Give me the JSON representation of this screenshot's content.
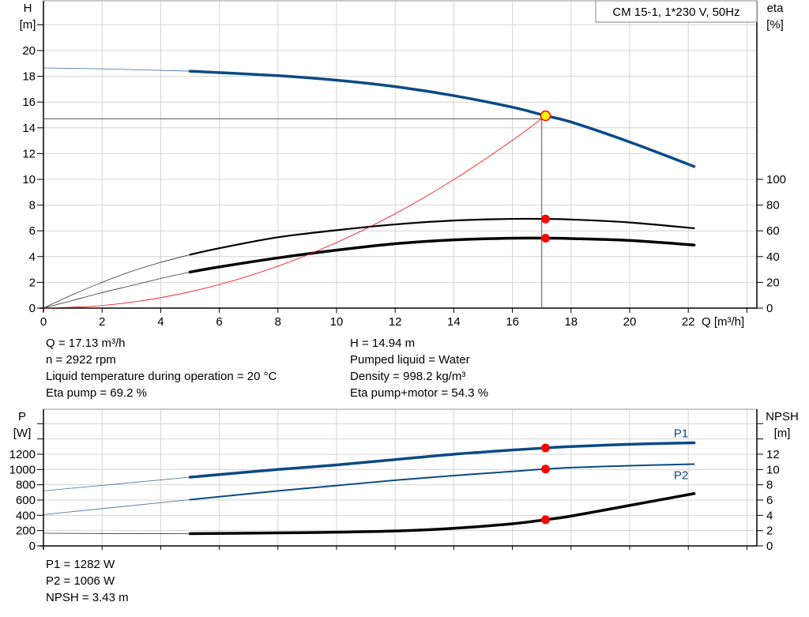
{
  "chart_data": [
    {
      "type": "line",
      "title": "CM 15-1, 1*230 V, 50Hz",
      "xlabel": "Q [m³/h]",
      "ylabel_left": [
        "H",
        "[m]"
      ],
      "ylabel_right": [
        "eta",
        "[%]"
      ],
      "xlim": [
        0,
        24
      ],
      "ylim_left": [
        0,
        24
      ],
      "ylim_right": [
        0,
        100
      ],
      "x_ticks": [
        0,
        2,
        4,
        6,
        8,
        10,
        12,
        14,
        16,
        18,
        20,
        22
      ],
      "y_ticks_left": [
        0,
        2,
        4,
        6,
        8,
        10,
        12,
        14,
        16,
        18,
        20
      ],
      "y_ticks_right": [
        0,
        20,
        40,
        60,
        80,
        100
      ],
      "grid": true,
      "colors": {
        "head": "#0b4a85",
        "eta": "#000000",
        "system": "#ff0000",
        "duty_point": "#ffff00",
        "marker": "#ff0000"
      },
      "series": [
        {
          "key": "H",
          "axis": "left",
          "thin_until": 5,
          "x": [
            0,
            2,
            5,
            8,
            10,
            12,
            14,
            16,
            17.13,
            18,
            20,
            22.2
          ],
          "y": [
            18.65,
            18.58,
            18.4,
            18.05,
            17.7,
            17.2,
            16.5,
            15.6,
            14.94,
            14.45,
            12.9,
            11.0
          ]
        },
        {
          "key": "eta_pump",
          "axis": "right",
          "thin_until": 5,
          "x": [
            0,
            1,
            2,
            3,
            4,
            5,
            6,
            8,
            10,
            12,
            14,
            16,
            17.13,
            18,
            20,
            22.2
          ],
          "y": [
            0,
            10.5,
            20,
            28.5,
            35.5,
            41.5,
            46.5,
            55,
            60.5,
            65,
            68,
            69.3,
            69.2,
            68.8,
            66.5,
            62
          ]
        },
        {
          "key": "eta_pump_motor",
          "axis": "right",
          "thin_until": 5,
          "x": [
            0,
            1,
            2,
            3,
            4,
            5,
            6,
            8,
            10,
            12,
            14,
            16,
            17.13,
            18,
            20,
            22.2
          ],
          "y": [
            0,
            6,
            12,
            17.5,
            23,
            28,
            32,
            39,
            45,
            50,
            53,
            54.3,
            54.3,
            54,
            52.5,
            49
          ]
        },
        {
          "key": "system",
          "axis": "left",
          "x": [
            0,
            2,
            4,
            6,
            8,
            10,
            12,
            14,
            16,
            17.13
          ],
          "y": [
            0,
            0.2,
            0.81,
            1.83,
            3.26,
            5.09,
            7.33,
            9.98,
            13.03,
            14.94
          ]
        }
      ],
      "duty_point": {
        "Q": 17.13,
        "H": 14.94,
        "eta_pump": 69.2,
        "eta_pump_motor": 54.3
      }
    },
    {
      "type": "line",
      "xlim": [
        0,
        24
      ],
      "ylabel_left": [
        "P",
        "[W]"
      ],
      "ylabel_right": [
        "NPSH",
        "[m]"
      ],
      "ylim_left": [
        0,
        1800
      ],
      "ylim_right": [
        0,
        18
      ],
      "y_ticks_left": [
        0,
        200,
        400,
        600,
        800,
        1000,
        1200
      ],
      "y_ticks_right": [
        0,
        2,
        4,
        6,
        8,
        10,
        12
      ],
      "grid": true,
      "series": [
        {
          "name": "P1",
          "axis": "left",
          "thin_until": 5,
          "x": [
            0,
            5,
            8,
            10,
            12,
            14,
            16,
            17.13,
            18,
            20,
            22.2
          ],
          "y": [
            720,
            900,
            1000,
            1060,
            1130,
            1200,
            1255,
            1282,
            1300,
            1330,
            1350
          ]
        },
        {
          "name": "P2",
          "axis": "left",
          "thin_until": 5,
          "x": [
            0,
            5,
            8,
            10,
            12,
            14,
            16,
            17.13,
            18,
            20,
            22.2
          ],
          "y": [
            410,
            605,
            720,
            790,
            860,
            920,
            975,
            1006,
            1025,
            1050,
            1070
          ]
        },
        {
          "key": "NPSH",
          "axis": "right",
          "thin_until": 5,
          "x": [
            0,
            2,
            5,
            8,
            10,
            12,
            14,
            16,
            17.13,
            18,
            20,
            22.2
          ],
          "y": [
            1.65,
            1.62,
            1.6,
            1.7,
            1.8,
            1.95,
            2.3,
            2.9,
            3.43,
            3.9,
            5.3,
            6.85
          ]
        }
      ],
      "duty_point": {
        "Q": 17.13,
        "P1": 1282,
        "P2": 1006,
        "NPSH": 3.43
      }
    }
  ],
  "info_top": {
    "left": [
      "Q = 17.13 m³/h",
      "n = 2922 rpm",
      "Liquid temperature during operation = 20 °C",
      "Eta pump = 69.2 %"
    ],
    "right": [
      "H = 14.94 m",
      "Pumped liquid = Water",
      "Density = 998.2 kg/m³",
      "Eta pump+motor = 54.3 %"
    ]
  },
  "info_bottom": [
    "P1 = 1282 W",
    "P2 = 1006 W",
    "NPSH = 3.43 m"
  ]
}
